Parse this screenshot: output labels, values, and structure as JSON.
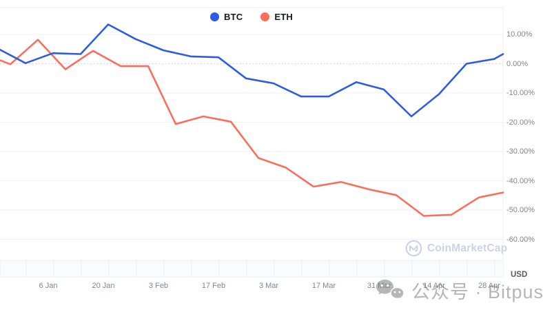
{
  "legend": {
    "items": [
      {
        "label": "BTC",
        "color": "#2d5be4"
      },
      {
        "label": "ETH",
        "color": "#fb6e5c"
      }
    ]
  },
  "chart_data": {
    "type": "line",
    "unit": "USD",
    "value_format": "percent_change",
    "y_axis": {
      "ticks": [
        {
          "label": "10.00%",
          "value": 10
        },
        {
          "label": "0.00%",
          "value": 0
        },
        {
          "label": "-10.00%",
          "value": -10
        },
        {
          "label": "-20.00%",
          "value": -20
        },
        {
          "label": "-30.00%",
          "value": -30
        },
        {
          "label": "-40.00%",
          "value": -40
        },
        {
          "label": "-50.00%",
          "value": -50
        },
        {
          "label": "-60.00%",
          "value": -60
        }
      ],
      "zero_line_style": "dotted",
      "gridlines": true,
      "visible_range": [
        -60,
        10
      ]
    },
    "x_axis": {
      "ticks": [
        {
          "label": "6 Jan",
          "px": 70
        },
        {
          "label": "20 Jan",
          "px": 150
        },
        {
          "label": "3 Feb",
          "px": 230
        },
        {
          "label": "17 Feb",
          "px": 310
        },
        {
          "label": "3 Mar",
          "px": 390
        },
        {
          "label": "17 Mar",
          "px": 470
        },
        {
          "label": "31 Mar",
          "px": 550
        },
        {
          "label": "14 Apr",
          "px": 630
        },
        {
          "label": "28 Apr",
          "px": 710
        }
      ]
    },
    "series": [
      {
        "name": "BTC",
        "color": "#2d5be4",
        "points": [
          [
            0,
            4.8
          ],
          [
            37,
            0.2
          ],
          [
            77,
            3.6
          ],
          [
            117,
            3.3
          ],
          [
            157,
            13.4
          ],
          [
            197,
            8.4
          ],
          [
            237,
            4.6
          ],
          [
            277,
            2.5
          ],
          [
            317,
            2.2
          ],
          [
            357,
            -5.0
          ],
          [
            397,
            -6.7
          ],
          [
            437,
            -11.2
          ],
          [
            477,
            -11.2
          ],
          [
            517,
            -6.3
          ],
          [
            557,
            -8.8
          ],
          [
            597,
            -18.0
          ],
          [
            637,
            -10.4
          ],
          [
            677,
            0.0
          ],
          [
            717,
            1.6
          ],
          [
            730,
            3.3
          ]
        ]
      },
      {
        "name": "ETH",
        "color": "#fb6e5c",
        "points": [
          [
            0,
            1.2
          ],
          [
            15,
            -0.2
          ],
          [
            55,
            8.2
          ],
          [
            95,
            -1.9
          ],
          [
            135,
            4.4
          ],
          [
            175,
            -0.8
          ],
          [
            215,
            -0.8
          ],
          [
            255,
            -20.6
          ],
          [
            295,
            -18.0
          ],
          [
            335,
            -19.8
          ],
          [
            375,
            -32.2
          ],
          [
            415,
            -35.5
          ],
          [
            455,
            -42.0
          ],
          [
            495,
            -40.4
          ],
          [
            535,
            -42.9
          ],
          [
            575,
            -44.9
          ],
          [
            615,
            -52.0
          ],
          [
            655,
            -51.6
          ],
          [
            695,
            -45.7
          ],
          [
            730,
            -44.0
          ]
        ]
      }
    ],
    "colors": {
      "grid": "#f0f2f6",
      "zero_line": "#c8ccd2",
      "border": "#e9ecf0",
      "band_fill": "#fafbfd",
      "band_tick": "#e9eef2",
      "axis_text": "#7d8697"
    }
  },
  "watermarks": {
    "coinmarketcap": {
      "text": "CoinMarketCap",
      "color": "#ccd3e1"
    },
    "bitpush": {
      "text": "公众号 · Bitpush"
    }
  }
}
